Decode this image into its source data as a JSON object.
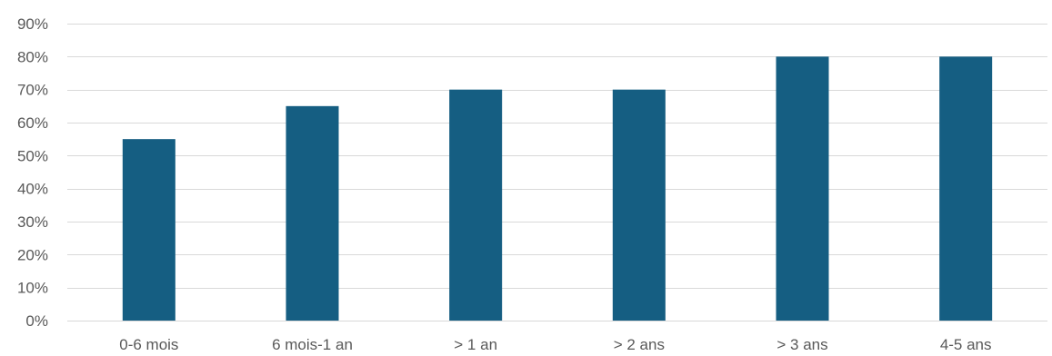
{
  "chart_data": {
    "type": "bar",
    "title": "",
    "xlabel": "",
    "ylabel": "",
    "categories": [
      "0-6 mois",
      "6 mois-1 an",
      "> 1 an",
      "> 2 ans",
      "> 3 ans",
      "4-5 ans"
    ],
    "values": [
      55,
      65,
      70,
      70,
      80,
      80
    ],
    "ylim": [
      0,
      90
    ],
    "yticks": [
      0,
      10,
      20,
      30,
      40,
      50,
      60,
      70,
      80,
      90
    ],
    "ytick_labels": [
      "0%",
      "10%",
      "20%",
      "30%",
      "40%",
      "50%",
      "60%",
      "70%",
      "80%",
      "90%"
    ],
    "grid": true,
    "legend": "none",
    "bar_color": "#155e82",
    "grid_color": "#d9d9d9",
    "text_color": "#595959"
  }
}
